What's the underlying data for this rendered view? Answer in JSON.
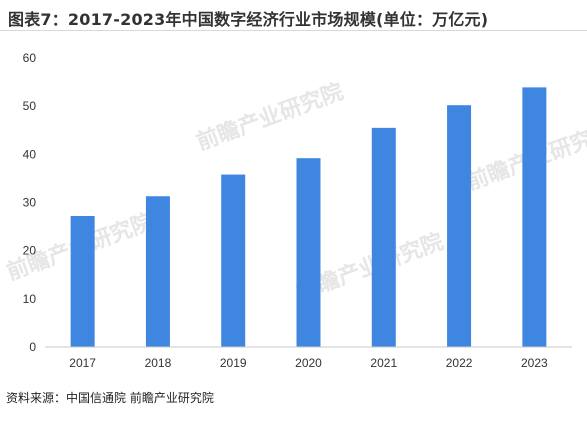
{
  "page": {
    "title": "图表7：2017-2023年中国数字经济行业市场规模(单位：万亿元)",
    "source": "资料来源：中国信通院 前瞻产业研究院",
    "watermark": "前瞻产业研究院"
  },
  "chart_data": {
    "type": "bar",
    "categories": [
      "2017",
      "2018",
      "2019",
      "2020",
      "2021",
      "2022",
      "2023"
    ],
    "values": [
      27.2,
      31.3,
      35.8,
      39.2,
      45.5,
      50.2,
      53.9
    ],
    "ylim": [
      0,
      60
    ],
    "yticks": [
      0,
      10,
      20,
      30,
      40,
      50,
      60
    ],
    "bar_color": "#3f86e0",
    "grid": false
  }
}
